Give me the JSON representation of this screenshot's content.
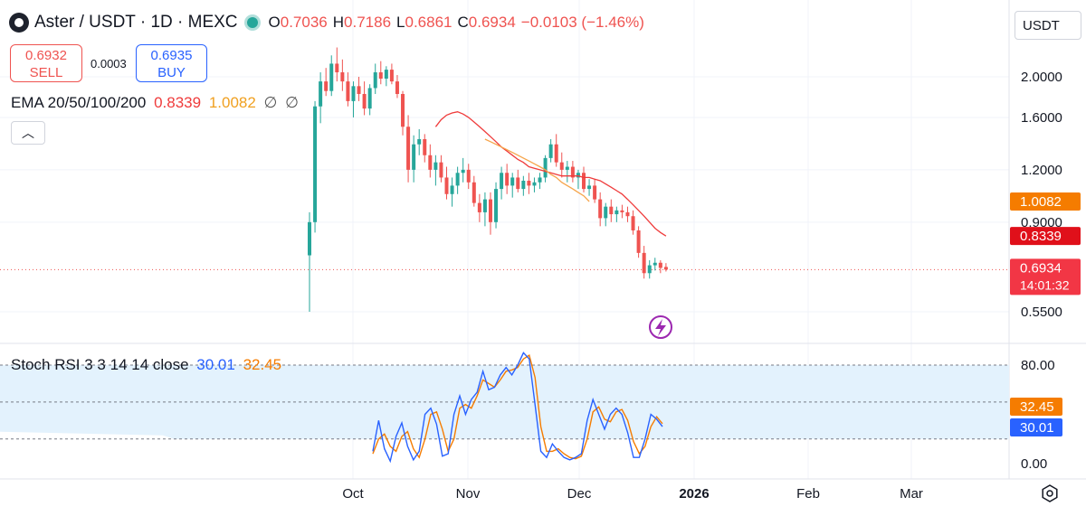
{
  "header": {
    "symbol": "Aster / USDT · 1D · MEXC",
    "ohlc": [
      {
        "key": "O",
        "value": "0.7036"
      },
      {
        "key": "H",
        "value": "0.7186"
      },
      {
        "key": "L",
        "value": "0.6861"
      },
      {
        "key": "C",
        "value": "0.6934"
      }
    ],
    "change": "−0.0103 (−1.46%)"
  },
  "trade": {
    "sell_price": "0.6932",
    "sell_label": "SELL",
    "spread": "0.0003",
    "buy_price": "0.6935",
    "buy_label": "BUY"
  },
  "ema_legend": {
    "label": "EMA 20/50/100/200",
    "v20": "0.8339",
    "v50": "1.0082",
    "v100": "∅",
    "v200": "∅"
  },
  "currency": "USDT",
  "colors": {
    "up": "#26a69a",
    "down": "#ef5350",
    "ema20": "#ef3b3b",
    "ema50": "#f6a54b",
    "k_line": "#2962ff",
    "d_line": "#f57c00",
    "band": "#e3f2fd"
  },
  "chart_data": [
    {
      "type": "candlestick",
      "title": "Aster / USDT · 1D · MEXC",
      "y_ticks": [
        "2.0000",
        "1.6000",
        "1.2000",
        "0.9000",
        "0.5500"
      ],
      "x_ticks": [
        "Oct",
        "Nov",
        "Dec",
        "2026",
        "Feb",
        "Mar"
      ],
      "price_labels": [
        {
          "name": "ema50",
          "value": 1.0082,
          "text": "1.0082"
        },
        {
          "name": "ema20",
          "value": 0.8339,
          "text": "0.8339"
        },
        {
          "name": "last",
          "value": 0.6934,
          "text": "0.6934",
          "countdown": "14:01:32"
        }
      ],
      "candles": [
        [
          0.75,
          0.95,
          0.55,
          0.9
        ],
        [
          0.9,
          1.75,
          0.85,
          1.7
        ],
        [
          1.7,
          2.05,
          1.55,
          1.95
        ],
        [
          1.95,
          2.1,
          1.8,
          1.85
        ],
        [
          1.85,
          2.25,
          1.8,
          2.15
        ],
        [
          2.15,
          2.35,
          1.95,
          2.05
        ],
        [
          2.05,
          2.2,
          1.85,
          1.95
        ],
        [
          1.95,
          2.05,
          1.7,
          1.75
        ],
        [
          1.75,
          1.95,
          1.6,
          1.9
        ],
        [
          1.9,
          2.0,
          1.75,
          1.82
        ],
        [
          1.82,
          1.95,
          1.62,
          1.68
        ],
        [
          1.68,
          1.92,
          1.62,
          1.88
        ],
        [
          1.88,
          2.15,
          1.82,
          2.05
        ],
        [
          2.05,
          2.18,
          1.92,
          1.98
        ],
        [
          1.98,
          2.12,
          1.9,
          2.08
        ],
        [
          2.08,
          2.15,
          1.92,
          1.95
        ],
        [
          1.95,
          2.02,
          1.78,
          1.82
        ],
        [
          1.82,
          1.85,
          1.45,
          1.52
        ],
        [
          1.52,
          1.62,
          1.12,
          1.2
        ],
        [
          1.2,
          1.45,
          1.12,
          1.38
        ],
        [
          1.38,
          1.5,
          1.3,
          1.42
        ],
        [
          1.42,
          1.46,
          1.25,
          1.3
        ],
        [
          1.3,
          1.38,
          1.15,
          1.2
        ],
        [
          1.2,
          1.3,
          1.1,
          1.25
        ],
        [
          1.25,
          1.3,
          1.12,
          1.15
        ],
        [
          1.15,
          1.22,
          1.02,
          1.05
        ],
        [
          1.05,
          1.15,
          0.98,
          1.1
        ],
        [
          1.1,
          1.22,
          1.05,
          1.18
        ],
        [
          1.18,
          1.28,
          1.12,
          1.2
        ],
        [
          1.2,
          1.24,
          1.08,
          1.12
        ],
        [
          1.12,
          1.16,
          0.98,
          1.0
        ],
        [
          1.0,
          1.05,
          0.9,
          0.95
        ],
        [
          0.95,
          1.06,
          0.88,
          1.02
        ],
        [
          1.02,
          1.06,
          0.84,
          0.9
        ],
        [
          0.9,
          1.12,
          0.87,
          1.08
        ],
        [
          1.08,
          1.22,
          1.02,
          1.18
        ],
        [
          1.18,
          1.24,
          1.05,
          1.1
        ],
        [
          1.1,
          1.18,
          1.03,
          1.15
        ],
        [
          1.15,
          1.2,
          1.06,
          1.08
        ],
        [
          1.08,
          1.16,
          1.04,
          1.13
        ],
        [
          1.13,
          1.18,
          1.05,
          1.1
        ],
        [
          1.1,
          1.15,
          1.06,
          1.12
        ],
        [
          1.12,
          1.18,
          1.08,
          1.15
        ],
        [
          1.15,
          1.3,
          1.12,
          1.28
        ],
        [
          1.28,
          1.42,
          1.25,
          1.38
        ],
        [
          1.38,
          1.46,
          1.22,
          1.25
        ],
        [
          1.25,
          1.32,
          1.15,
          1.2
        ],
        [
          1.2,
          1.26,
          1.12,
          1.22
        ],
        [
          1.22,
          1.26,
          1.12,
          1.15
        ],
        [
          1.15,
          1.2,
          1.08,
          1.18
        ],
        [
          1.18,
          1.22,
          1.06,
          1.08
        ],
        [
          1.08,
          1.14,
          1.04,
          1.1
        ],
        [
          1.1,
          1.14,
          1.0,
          1.02
        ],
        [
          1.02,
          1.06,
          0.88,
          0.92
        ],
        [
          0.92,
          1.0,
          0.88,
          0.98
        ],
        [
          0.98,
          1.02,
          0.9,
          0.94
        ],
        [
          0.94,
          0.98,
          0.9,
          0.96
        ],
        [
          0.96,
          0.99,
          0.92,
          0.95
        ],
        [
          0.95,
          0.98,
          0.9,
          0.93
        ],
        [
          0.93,
          0.96,
          0.84,
          0.86
        ],
        [
          0.86,
          0.88,
          0.74,
          0.76
        ],
        [
          0.76,
          0.79,
          0.66,
          0.68
        ],
        [
          0.68,
          0.73,
          0.66,
          0.71
        ],
        [
          0.71,
          0.74,
          0.69,
          0.72
        ],
        [
          0.72,
          0.73,
          0.68,
          0.7
        ],
        [
          0.7036,
          0.7186,
          0.6861,
          0.6934
        ]
      ],
      "ema20": [
        1.52,
        1.58,
        1.62,
        1.64,
        1.65,
        1.63,
        1.6,
        1.56,
        1.52,
        1.48,
        1.44,
        1.4,
        1.36,
        1.33,
        1.3,
        1.27,
        1.25,
        1.22,
        1.21,
        1.2,
        1.19,
        1.18,
        1.17,
        1.16,
        1.16,
        1.16,
        1.16,
        1.15,
        1.15,
        1.14,
        1.13,
        1.11,
        1.09,
        1.07,
        1.05,
        1.02,
        0.99,
        0.96,
        0.93,
        0.9,
        0.87,
        0.85,
        0.8339
      ],
      "ema50": [
        1.42,
        1.4,
        1.38,
        1.36,
        1.34,
        1.32,
        1.3,
        1.28,
        1.26,
        1.24,
        1.22,
        1.2,
        1.17,
        1.15,
        1.12,
        1.1,
        1.08,
        1.06,
        1.04,
        1.0082
      ],
      "stoch_rsi": {
        "label": "Stoch RSI 3 3 14 14 close",
        "k_value": "30.01",
        "d_value": "32.45",
        "y_ticks": [
          "80.00",
          "0.00"
        ],
        "band": [
          20,
          80
        ],
        "k": [
          10,
          35,
          12,
          2,
          22,
          33,
          14,
          3,
          10,
          40,
          45,
          32,
          6,
          8,
          40,
          55,
          40,
          52,
          58,
          75,
          60,
          62,
          72,
          78,
          72,
          80,
          90,
          85,
          48,
          10,
          5,
          16,
          10,
          5,
          3,
          5,
          8,
          35,
          52,
          40,
          28,
          40,
          45,
          40,
          25,
          5,
          5,
          20,
          40,
          36,
          30.01
        ],
        "d": [
          8,
          20,
          24,
          14,
          10,
          22,
          26,
          12,
          5,
          20,
          40,
          42,
          28,
          10,
          20,
          45,
          48,
          45,
          55,
          68,
          65,
          62,
          68,
          75,
          76,
          78,
          85,
          88,
          70,
          30,
          10,
          10,
          12,
          8,
          5,
          4,
          6,
          20,
          42,
          46,
          36,
          34,
          42,
          44,
          35,
          18,
          8,
          14,
          30,
          38,
          32.45
        ]
      }
    }
  ]
}
